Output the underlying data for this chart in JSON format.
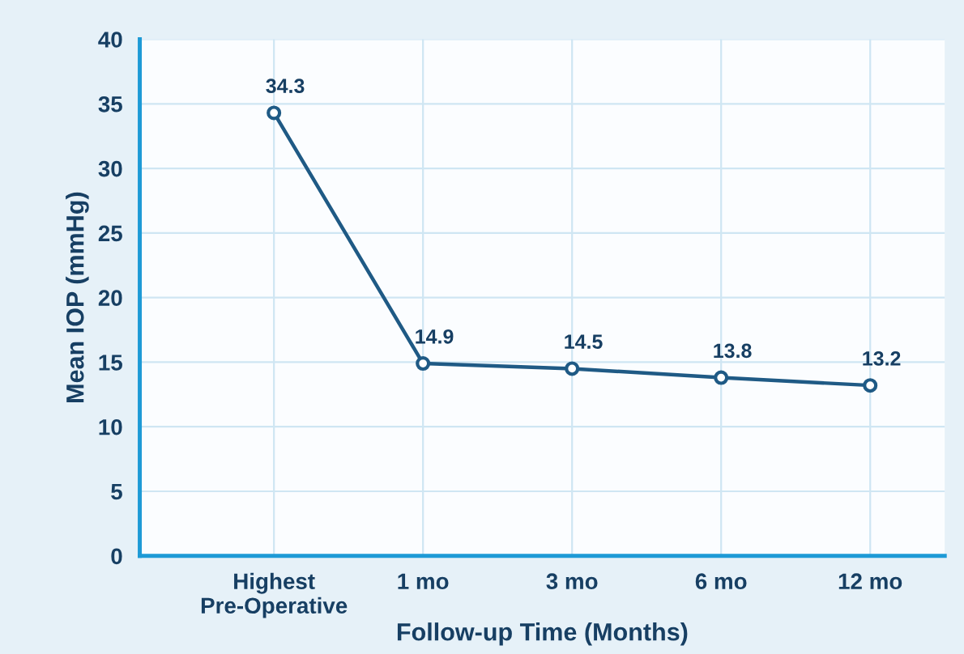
{
  "chart_data": {
    "type": "line",
    "xlabel": "Follow-up Time (Months)",
    "ylabel": "Mean IOP (mmHg)",
    "categories": [
      "Highest\nPre-Operative",
      "1 mo",
      "3 mo",
      "6 mo",
      "12 mo"
    ],
    "series": [
      {
        "color": "#1f5a85",
        "values": [
          34.3,
          14.9,
          14.5,
          13.8,
          13.2
        ]
      }
    ],
    "ylim": [
      0,
      40
    ],
    "yticks": [
      0,
      5,
      10,
      15,
      20,
      25,
      30,
      35,
      40
    ],
    "grid": true,
    "marker": "circle",
    "line_style": "solid",
    "data_labels": true
  }
}
